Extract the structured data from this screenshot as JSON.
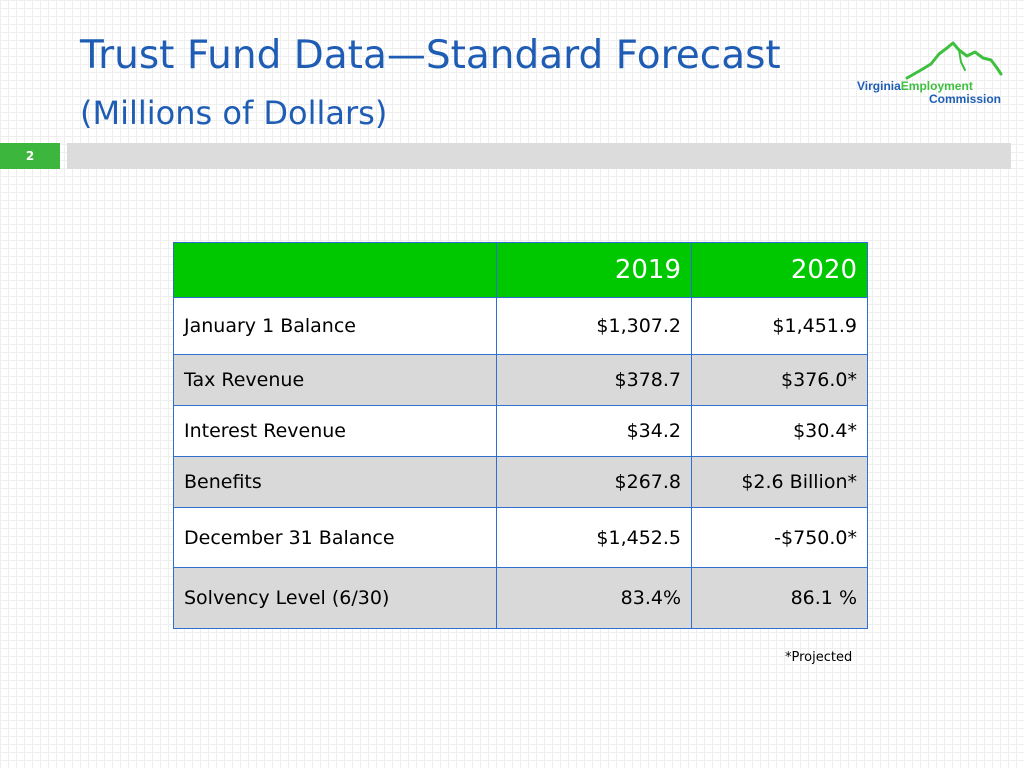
{
  "header": {
    "title": "Trust Fund Data—Standard Forecast",
    "subtitle": "(Millions of Dollars)"
  },
  "logo": {
    "name_part1": "Virginia",
    "name_part2": "Employment",
    "name_part3": "Commission",
    "icon": "virginia-state-outline-icon"
  },
  "slide_number": "2",
  "table": {
    "header": {
      "label": "",
      "col1": "2019",
      "col2": "2020"
    },
    "rows": [
      {
        "label": "January 1 Balance",
        "y2019": "$1,307.2",
        "y2020": "$1,451.9"
      },
      {
        "label": "Tax Revenue",
        "y2019": "$378.7",
        "y2020": "$376.0*"
      },
      {
        "label": "Interest Revenue",
        "y2019": "$34.2",
        "y2020": "$30.4*"
      },
      {
        "label": "Benefits",
        "y2019": "$267.8",
        "y2020": "$2.6 Billion*"
      },
      {
        "label": "December 31 Balance",
        "y2019": "$1,452.5",
        "y2020": "-$750.0*"
      },
      {
        "label": "Solvency Level (6/30)",
        "y2019": "83.4%",
        "y2020": "86.1 %"
      }
    ]
  },
  "footnote": "*Projected",
  "colors": {
    "title": "#1f5db5",
    "header_fill": "#00c800",
    "accent_green": "#3cb63c",
    "table_border": "#2e6fcf",
    "alt_row": "#d9d9d9"
  }
}
